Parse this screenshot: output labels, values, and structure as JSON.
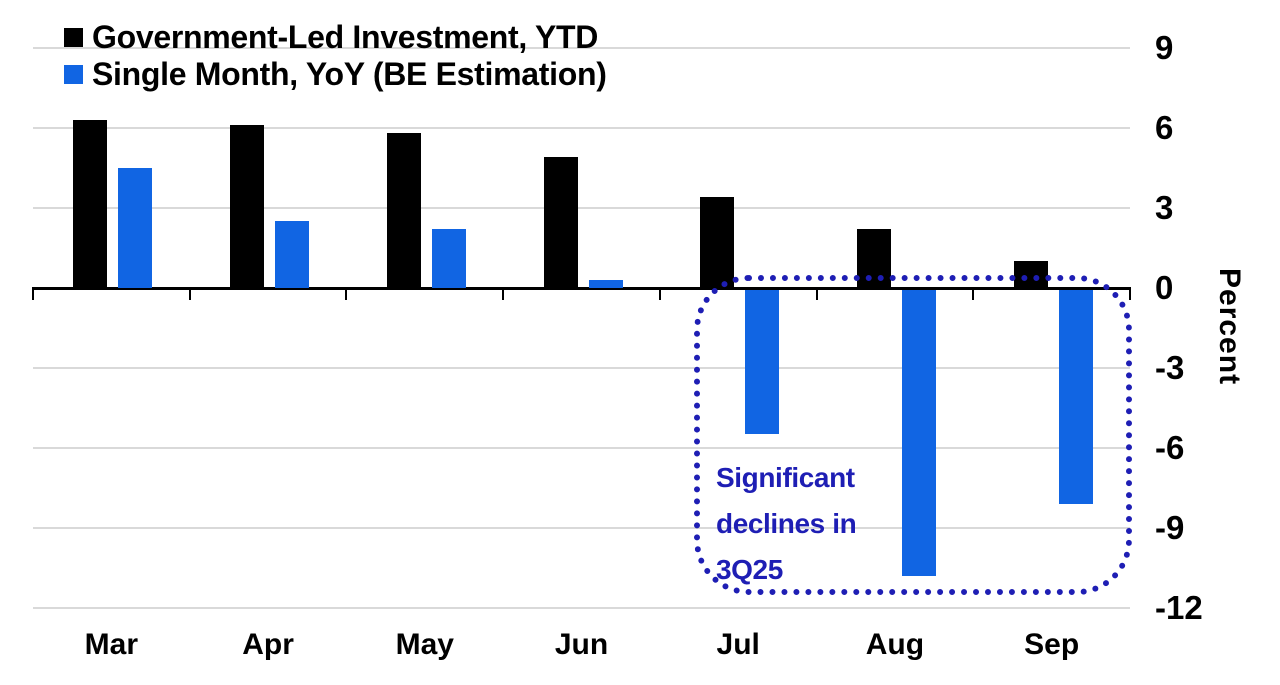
{
  "chart_data": {
    "type": "bar",
    "categories": [
      "Mar",
      "Apr",
      "May",
      "Jun",
      "Jul",
      "Aug",
      "Sep"
    ],
    "series": [
      {
        "name": "Government-Led Investment, YTD",
        "color": "#000000",
        "values": [
          6.3,
          6.1,
          5.8,
          4.9,
          3.4,
          2.2,
          1.0
        ]
      },
      {
        "name": "Single Month, YoY (BE Estimation)",
        "color": "#1165e3",
        "values": [
          4.5,
          2.5,
          2.2,
          0.3,
          -5.4,
          -10.7,
          -8.0
        ]
      }
    ],
    "title": "",
    "xlabel": "",
    "ylabel": "Percent",
    "yticks": [
      9,
      6,
      3,
      0,
      -3,
      -6,
      -9,
      -12
    ],
    "ylim": [
      -12.7,
      9.7
    ],
    "grid": "horizontal",
    "gridline_color": "#d9d9d9",
    "axis_color": "#000000",
    "legend_position": "top-left",
    "annotation": {
      "lines": [
        "Significant",
        "declines in",
        "3Q25"
      ],
      "color": "#1e1eb4",
      "box_style": "blue dotted rounded rectangle around Jul-Sep negative bars"
    }
  }
}
